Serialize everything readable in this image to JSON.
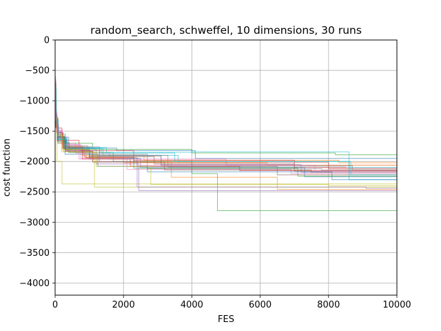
{
  "chart_data": {
    "type": "line",
    "step": true,
    "title": "random_search, schweffel, 10 dimensions, 30 runs",
    "xlabel": "FES",
    "ylabel": "cost function",
    "xlim": [
      0,
      10000
    ],
    "ylim": [
      -4200,
      0
    ],
    "xticks": [
      0,
      2000,
      4000,
      6000,
      8000,
      10000
    ],
    "yticks": [
      0,
      -500,
      -1000,
      -1500,
      -2000,
      -2500,
      -3000,
      -3500,
      -4000
    ],
    "xtick_labels": [
      "0",
      "2000",
      "4000",
      "6000",
      "8000",
      "10000"
    ],
    "ytick_labels": [
      "0",
      "−500",
      "−1000",
      "−1500",
      "−2000",
      "−2500",
      "−3000",
      "−3500",
      "−4000"
    ],
    "grid": true,
    "line_alpha": 0.6,
    "series": [
      {
        "color": "#1f77b4",
        "x": [
          0,
          20,
          60,
          150,
          400,
          1800,
          4100,
          10000
        ],
        "y": [
          -700,
          -1250,
          -1500,
          -1600,
          -1780,
          -1820,
          -1950,
          -2030
        ]
      },
      {
        "color": "#ff7f0e",
        "x": [
          0,
          30,
          90,
          250,
          800,
          2600,
          8300,
          10000
        ],
        "y": [
          -800,
          -1300,
          -1600,
          -1750,
          -1900,
          -1980,
          -2020,
          -2020
        ]
      },
      {
        "color": "#2ca02c",
        "x": [
          0,
          25,
          70,
          300,
          1100,
          4000,
          8200,
          10000
        ],
        "y": [
          -900,
          -1350,
          -1550,
          -1700,
          -1800,
          -1860,
          -1890,
          -2180
        ]
      },
      {
        "color": "#d62728",
        "x": [
          0,
          15,
          45,
          200,
          700,
          2300,
          7000,
          10000
        ],
        "y": [
          -650,
          -1200,
          -1450,
          -1650,
          -1820,
          -1980,
          -2100,
          -2100
        ]
      },
      {
        "color": "#9467bd",
        "x": [
          0,
          35,
          100,
          350,
          1300,
          3100,
          7200,
          10000
        ],
        "y": [
          -1000,
          -1400,
          -1600,
          -1760,
          -1900,
          -2050,
          -2180,
          -2180
        ]
      },
      {
        "color": "#8c564b",
        "x": [
          0,
          20,
          80,
          420,
          900,
          2400,
          6500,
          10000
        ],
        "y": [
          -750,
          -1280,
          -1700,
          -1850,
          -1940,
          -2080,
          -2220,
          -2220
        ]
      },
      {
        "color": "#e377c2",
        "x": [
          0,
          10,
          40,
          180,
          600,
          1600,
          5000,
          10000
        ],
        "y": [
          -600,
          -1150,
          -1500,
          -1700,
          -1860,
          -1960,
          -2060,
          -2060
        ]
      },
      {
        "color": "#7f7f7f",
        "x": [
          0,
          22,
          65,
          280,
          950,
          2700,
          7800,
          10000
        ],
        "y": [
          -850,
          -1300,
          -1580,
          -1740,
          -1880,
          -2120,
          -2140,
          -2140
        ]
      },
      {
        "color": "#bcbd22",
        "x": [
          0,
          18,
          55,
          200,
          1200,
          3000,
          8100,
          10000
        ],
        "y": [
          -900,
          -1350,
          -2000,
          -2370,
          -2370,
          -2370,
          -2370,
          -2370
        ]
      },
      {
        "color": "#17becf",
        "x": [
          0,
          28,
          85,
          330,
          1400,
          3600,
          8600,
          10000
        ],
        "y": [
          -780,
          -1320,
          -1620,
          -1780,
          -1900,
          -2000,
          -2300,
          -2300
        ]
      },
      {
        "color": "#1f77b4",
        "x": [
          0,
          26,
          75,
          260,
          1000,
          2500,
          7300,
          10000
        ],
        "y": [
          -720,
          -1380,
          -1600,
          -1800,
          -1950,
          -2100,
          -2250,
          -2250
        ]
      },
      {
        "color": "#ff7f0e",
        "x": [
          0,
          24,
          68,
          240,
          1100,
          3400,
          6500,
          10000
        ],
        "y": [
          -820,
          -1360,
          -1640,
          -1830,
          -2000,
          -2260,
          -2460,
          -2460
        ]
      },
      {
        "color": "#2ca02c",
        "x": [
          0,
          30,
          95,
          380,
          1700,
          4000,
          4750,
          10000
        ],
        "y": [
          -950,
          -1420,
          -1680,
          -1850,
          -2000,
          -2200,
          -2810,
          -2810
        ]
      },
      {
        "color": "#d62728",
        "x": [
          0,
          12,
          50,
          230,
          850,
          2300,
          8000,
          10000
        ],
        "y": [
          -680,
          -1220,
          -1530,
          -1760,
          -1930,
          -2010,
          -2120,
          -2120
        ]
      },
      {
        "color": "#9467bd",
        "x": [
          0,
          32,
          88,
          310,
          1200,
          2450,
          8900,
          10000
        ],
        "y": [
          -880,
          -1340,
          -1620,
          -1790,
          -2040,
          -2480,
          -2480,
          -2480
        ]
      },
      {
        "color": "#8c564b",
        "x": [
          0,
          20,
          60,
          300,
          1000,
          2900,
          7000,
          10000
        ],
        "y": [
          -900,
          -1450,
          -1650,
          -1810,
          -1920,
          -2040,
          -2160,
          -2160
        ]
      },
      {
        "color": "#e377c2",
        "x": [
          0,
          16,
          48,
          210,
          750,
          2100,
          6900,
          10000
        ],
        "y": [
          -640,
          -1180,
          -1480,
          -1720,
          -1950,
          -2130,
          -2200,
          -2200
        ]
      },
      {
        "color": "#7f7f7f",
        "x": [
          0,
          22,
          70,
          270,
          1050,
          3300,
          8500,
          10000
        ],
        "y": [
          -820,
          -1300,
          -1580,
          -1760,
          -1900,
          -2090,
          -2100,
          -2100
        ]
      },
      {
        "color": "#bcbd22",
        "x": [
          0,
          18,
          58,
          190,
          1150,
          2600,
          8300,
          10000
        ],
        "y": [
          -760,
          -1290,
          -1560,
          -1840,
          -2420,
          -2420,
          -2420,
          -2420
        ]
      },
      {
        "color": "#17becf",
        "x": [
          0,
          27,
          82,
          340,
          1500,
          4000,
          8600,
          10000
        ],
        "y": [
          -800,
          -1330,
          -1630,
          -1770,
          -1850,
          -1840,
          -2100,
          -2100
        ]
      },
      {
        "color": "#1f77b4",
        "x": [
          0,
          21,
          66,
          290,
          1250,
          2700,
          8100,
          10000
        ],
        "y": [
          -730,
          -1310,
          -1600,
          -1880,
          -2080,
          -2170,
          -2300,
          -2300
        ]
      },
      {
        "color": "#ff7f0e",
        "x": [
          0,
          23,
          72,
          250,
          900,
          2000,
          6200,
          10000
        ],
        "y": [
          -770,
          -1340,
          -1590,
          -1800,
          -1940,
          -2020,
          -2060,
          -2060
        ]
      },
      {
        "color": "#2ca02c",
        "x": [
          0,
          25,
          74,
          270,
          1000,
          2300,
          7100,
          10000
        ],
        "y": [
          -860,
          -1370,
          -1610,
          -1790,
          -1960,
          -2110,
          -2240,
          -2240
        ]
      },
      {
        "color": "#d62728",
        "x": [
          0,
          14,
          46,
          220,
          800,
          2200,
          5400,
          10000
        ],
        "y": [
          -700,
          -1240,
          -1520,
          -1780,
          -1960,
          -2080,
          -2150,
          -2150
        ]
      },
      {
        "color": "#9467bd",
        "x": [
          0,
          31,
          92,
          320,
          1300,
          2400,
          9100,
          10000
        ],
        "y": [
          -840,
          -1390,
          -1640,
          -1820,
          -2000,
          -2420,
          -2440,
          -2440
        ]
      },
      {
        "color": "#8c564b",
        "x": [
          0,
          19,
          62,
          310,
          1100,
          3200,
          7500,
          10000
        ],
        "y": [
          -880,
          -1430,
          -1660,
          -1830,
          -2010,
          -2140,
          -2180,
          -2180
        ]
      },
      {
        "color": "#e377c2",
        "x": [
          0,
          17,
          52,
          200,
          700,
          2500,
          7600,
          10000
        ],
        "y": [
          -660,
          -1200,
          -1500,
          -1730,
          -1960,
          -2060,
          -2160,
          -2160
        ]
      },
      {
        "color": "#7f7f7f",
        "x": [
          0,
          24,
          71,
          260,
          1000,
          3100,
          8700,
          10000
        ],
        "y": [
          -830,
          -1320,
          -1590,
          -1770,
          -1910,
          -2070,
          -2140,
          -2140
        ]
      },
      {
        "color": "#bcbd22",
        "x": [
          0,
          19,
          57,
          210,
          1200,
          2800,
          8000,
          10000
        ],
        "y": [
          -780,
          -1300,
          -1570,
          -1800,
          -2080,
          -2380,
          -2400,
          -2400
        ]
      },
      {
        "color": "#17becf",
        "x": [
          0,
          26,
          80,
          350,
          1350,
          3500,
          8650,
          10000
        ],
        "y": [
          -810,
          -1350,
          -1640,
          -1790,
          -1860,
          -2000,
          -2220,
          -2220
        ]
      }
    ]
  }
}
